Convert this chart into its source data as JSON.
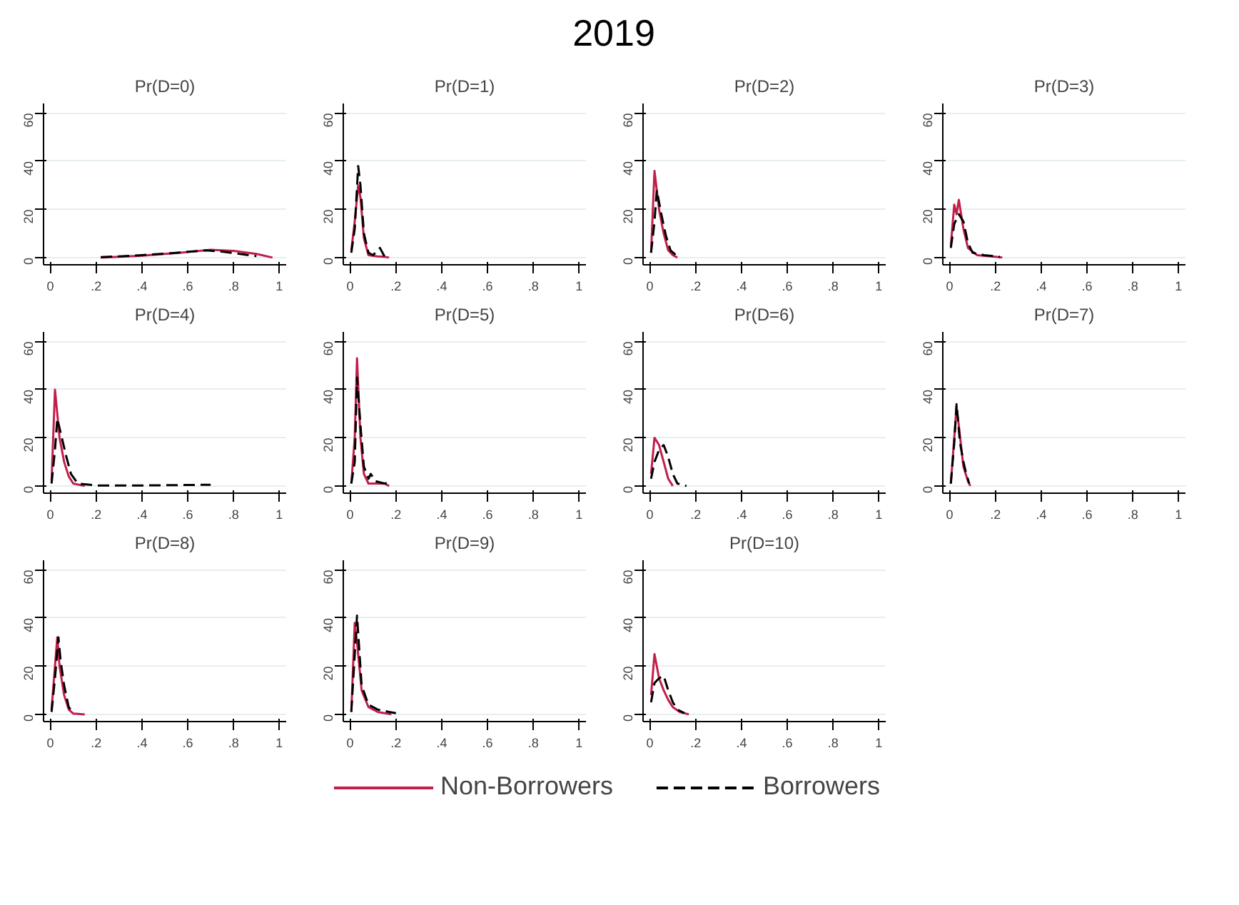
{
  "chart_data": [
    {
      "type": "line",
      "title": "Pr(D=0)",
      "annotations": [
        "2019"
      ],
      "legend": "bottom",
      "xlim": [
        -0.03,
        1.03
      ],
      "ylim": [
        -3,
        64
      ],
      "xticks": [
        {
          "value": 0,
          "label": "0"
        },
        {
          "value": 0.2,
          "label": ".2"
        },
        {
          "value": 0.4,
          "label": ".4"
        },
        {
          "value": 0.6,
          "label": ".6"
        },
        {
          "value": 0.8,
          "label": ".8"
        },
        {
          "value": 1,
          "label": "1"
        }
      ],
      "yticks": [
        0,
        20,
        40,
        60
      ],
      "grid": "y",
      "series": [
        {
          "name": "Non-Borrowers",
          "color": "#c21e4a",
          "line_style": "solid",
          "x": [
            0.22,
            0.3,
            0.4,
            0.5,
            0.6,
            0.7,
            0.8,
            0.9,
            0.97
          ],
          "values": [
            0,
            0.3,
            0.8,
            1.5,
            2.3,
            3.2,
            2.8,
            1.5,
            0
          ]
        },
        {
          "name": "Borrowers",
          "color": "#000000",
          "line_style": "dashed",
          "x": [
            0.22,
            0.3,
            0.4,
            0.5,
            0.6,
            0.68,
            0.75,
            0.85,
            0.9
          ],
          "values": [
            0.2,
            0.5,
            1,
            1.6,
            2.4,
            3,
            2.5,
            1.2,
            0.6
          ]
        }
      ]
    },
    {
      "type": "line",
      "title": "Pr(D=1)",
      "xlim": [
        -0.03,
        1.03
      ],
      "ylim": [
        -3,
        64
      ],
      "xticks": [
        {
          "value": 0,
          "label": "0"
        },
        {
          "value": 0.2,
          "label": ".2"
        },
        {
          "value": 0.4,
          "label": ".4"
        },
        {
          "value": 0.6,
          "label": ".6"
        },
        {
          "value": 0.8,
          "label": ".8"
        },
        {
          "value": 1,
          "label": "1"
        }
      ],
      "yticks": [
        0,
        20,
        40,
        60
      ],
      "grid": "y",
      "series": [
        {
          "color": "#c21e4a",
          "line_style": "solid",
          "x": [
            0.005,
            0.02,
            0.035,
            0.045,
            0.06,
            0.08,
            0.12,
            0.15,
            0.17
          ],
          "values": [
            3,
            15,
            30,
            25,
            8,
            1,
            0.5,
            0.3,
            0
          ]
        },
        {
          "color": "#000000",
          "line_style": "dashed",
          "x": [
            0.005,
            0.02,
            0.035,
            0.045,
            0.06,
            0.08,
            0.1,
            0.13,
            0.15
          ],
          "values": [
            2,
            12,
            38,
            30,
            10,
            2,
            1,
            4,
            0.5
          ]
        }
      ]
    },
    {
      "type": "line",
      "title": "Pr(D=2)",
      "xlim": [
        -0.03,
        1.03
      ],
      "ylim": [
        -3,
        64
      ],
      "xticks": [
        {
          "value": 0,
          "label": "0"
        },
        {
          "value": 0.2,
          "label": ".2"
        },
        {
          "value": 0.4,
          "label": ".4"
        },
        {
          "value": 0.6,
          "label": ".6"
        },
        {
          "value": 0.8,
          "label": ".8"
        },
        {
          "value": 1,
          "label": "1"
        }
      ],
      "yticks": [
        0,
        20,
        40,
        60
      ],
      "grid": "y",
      "series": [
        {
          "color": "#c21e4a",
          "line_style": "solid",
          "x": [
            0.005,
            0.02,
            0.04,
            0.06,
            0.08,
            0.1,
            0.12
          ],
          "values": [
            2,
            36,
            20,
            10,
            3,
            1,
            0
          ]
        },
        {
          "color": "#000000",
          "line_style": "dashed",
          "x": [
            0.005,
            0.02,
            0.03,
            0.05,
            0.07,
            0.09,
            0.12
          ],
          "values": [
            2,
            15,
            28,
            18,
            9,
            3,
            0.5
          ]
        }
      ]
    },
    {
      "type": "line",
      "title": "Pr(D=3)",
      "xlim": [
        -0.03,
        1.03
      ],
      "ylim": [
        -3,
        64
      ],
      "xticks": [
        {
          "value": 0,
          "label": "0"
        },
        {
          "value": 0.2,
          "label": ".2"
        },
        {
          "value": 0.4,
          "label": ".4"
        },
        {
          "value": 0.6,
          "label": ".6"
        },
        {
          "value": 0.8,
          "label": ".8"
        },
        {
          "value": 1,
          "label": "1"
        }
      ],
      "yticks": [
        0,
        20,
        40,
        60
      ],
      "grid": "y",
      "series": [
        {
          "color": "#c21e4a",
          "line_style": "solid",
          "x": [
            0.005,
            0.02,
            0.03,
            0.04,
            0.06,
            0.08,
            0.12,
            0.2,
            0.23
          ],
          "values": [
            5,
            22,
            18,
            24,
            12,
            4,
            1,
            0.3,
            0
          ]
        },
        {
          "color": "#000000",
          "line_style": "dashed",
          "x": [
            0.005,
            0.02,
            0.04,
            0.06,
            0.08,
            0.1,
            0.15,
            0.22
          ],
          "values": [
            4,
            14,
            18,
            15,
            6,
            2,
            1,
            0.3
          ]
        }
      ]
    },
    {
      "type": "line",
      "title": "Pr(D=4)",
      "xlim": [
        -0.03,
        1.03
      ],
      "ylim": [
        -3,
        64
      ],
      "xticks": [
        {
          "value": 0,
          "label": "0"
        },
        {
          "value": 0.2,
          "label": ".2"
        },
        {
          "value": 0.4,
          "label": ".4"
        },
        {
          "value": 0.6,
          "label": ".6"
        },
        {
          "value": 0.8,
          "label": ".8"
        },
        {
          "value": 1,
          "label": "1"
        }
      ],
      "yticks": [
        0,
        20,
        40,
        60
      ],
      "grid": "y",
      "series": [
        {
          "color": "#c21e4a",
          "line_style": "solid",
          "x": [
            0.005,
            0.02,
            0.04,
            0.06,
            0.08,
            0.1,
            0.15
          ],
          "values": [
            2,
            40,
            20,
            10,
            4,
            1,
            0
          ]
        },
        {
          "color": "#000000",
          "line_style": "dashed",
          "x": [
            0.005,
            0.02,
            0.03,
            0.05,
            0.07,
            0.09,
            0.12,
            0.2,
            0.4,
            0.7
          ],
          "values": [
            1,
            15,
            28,
            20,
            12,
            5,
            1,
            0.2,
            0.2,
            0.5
          ]
        }
      ]
    },
    {
      "type": "line",
      "title": "Pr(D=5)",
      "xlim": [
        -0.03,
        1.03
      ],
      "ylim": [
        -3,
        64
      ],
      "xticks": [
        {
          "value": 0,
          "label": "0"
        },
        {
          "value": 0.2,
          "label": ".2"
        },
        {
          "value": 0.4,
          "label": ".4"
        },
        {
          "value": 0.6,
          "label": ".6"
        },
        {
          "value": 0.8,
          "label": ".8"
        },
        {
          "value": 1,
          "label": "1"
        }
      ],
      "yticks": [
        0,
        20,
        40,
        60
      ],
      "grid": "y",
      "series": [
        {
          "color": "#c21e4a",
          "line_style": "solid",
          "x": [
            0.005,
            0.02,
            0.03,
            0.045,
            0.06,
            0.08,
            0.15,
            0.17
          ],
          "values": [
            1,
            20,
            53,
            20,
            5,
            1,
            1,
            0
          ]
        },
        {
          "color": "#000000",
          "line_style": "dashed",
          "x": [
            0.005,
            0.02,
            0.03,
            0.045,
            0.06,
            0.08,
            0.09,
            0.11,
            0.15,
            0.17
          ],
          "values": [
            1,
            10,
            45,
            25,
            8,
            3,
            5,
            2,
            1,
            1.5
          ]
        }
      ]
    },
    {
      "type": "line",
      "title": "Pr(D=6)",
      "xlim": [
        -0.03,
        1.03
      ],
      "ylim": [
        -3,
        64
      ],
      "xticks": [
        {
          "value": 0,
          "label": "0"
        },
        {
          "value": 0.2,
          "label": ".2"
        },
        {
          "value": 0.4,
          "label": ".4"
        },
        {
          "value": 0.6,
          "label": ".6"
        },
        {
          "value": 0.8,
          "label": ".8"
        },
        {
          "value": 1,
          "label": "1"
        }
      ],
      "yticks": [
        0,
        20,
        40,
        60
      ],
      "grid": "y",
      "series": [
        {
          "color": "#c21e4a",
          "line_style": "solid",
          "x": [
            0.005,
            0.02,
            0.04,
            0.06,
            0.08,
            0.1
          ],
          "values": [
            5,
            20,
            17,
            10,
            3,
            0
          ]
        },
        {
          "color": "#000000",
          "line_style": "dashed",
          "x": [
            0.005,
            0.02,
            0.04,
            0.06,
            0.08,
            0.1,
            0.12,
            0.16
          ],
          "values": [
            3,
            10,
            15,
            17,
            12,
            5,
            1,
            0
          ]
        }
      ]
    },
    {
      "type": "line",
      "title": "Pr(D=7)",
      "xlim": [
        -0.03,
        1.03
      ],
      "ylim": [
        -3,
        64
      ],
      "xticks": [
        {
          "value": 0,
          "label": "0"
        },
        {
          "value": 0.2,
          "label": ".2"
        },
        {
          "value": 0.4,
          "label": ".4"
        },
        {
          "value": 0.6,
          "label": ".6"
        },
        {
          "value": 0.8,
          "label": ".8"
        },
        {
          "value": 1,
          "label": "1"
        }
      ],
      "yticks": [
        0,
        20,
        40,
        60
      ],
      "grid": "y",
      "series": [
        {
          "color": "#c21e4a",
          "line_style": "solid",
          "x": [
            0.005,
            0.02,
            0.03,
            0.04,
            0.06,
            0.08,
            0.09
          ],
          "values": [
            1,
            20,
            33,
            25,
            8,
            2,
            0
          ]
        },
        {
          "color": "#000000",
          "line_style": "dashed",
          "x": [
            0.005,
            0.02,
            0.03,
            0.045,
            0.06,
            0.07,
            0.085
          ],
          "values": [
            1,
            18,
            34,
            18,
            10,
            6,
            1
          ]
        }
      ]
    },
    {
      "type": "line",
      "title": "Pr(D=8)",
      "xlim": [
        -0.03,
        1.03
      ],
      "ylim": [
        -3,
        64
      ],
      "xticks": [
        {
          "value": 0,
          "label": "0"
        },
        {
          "value": 0.2,
          "label": ".2"
        },
        {
          "value": 0.4,
          "label": ".4"
        },
        {
          "value": 0.6,
          "label": ".6"
        },
        {
          "value": 0.8,
          "label": ".8"
        },
        {
          "value": 1,
          "label": "1"
        }
      ],
      "yticks": [
        0,
        20,
        40,
        60
      ],
      "grid": "y",
      "series": [
        {
          "color": "#c21e4a",
          "line_style": "solid",
          "x": [
            0.005,
            0.02,
            0.03,
            0.04,
            0.06,
            0.08,
            0.1,
            0.15
          ],
          "values": [
            2,
            20,
            32,
            20,
            8,
            2,
            0.3,
            0
          ]
        },
        {
          "color": "#000000",
          "line_style": "dashed",
          "x": [
            0.005,
            0.02,
            0.035,
            0.045,
            0.06,
            0.08,
            0.1
          ],
          "values": [
            1,
            15,
            32,
            22,
            12,
            3,
            0.5
          ]
        }
      ]
    },
    {
      "type": "line",
      "title": "Pr(D=9)",
      "xlim": [
        -0.03,
        1.03
      ],
      "ylim": [
        -3,
        64
      ],
      "xticks": [
        {
          "value": 0,
          "label": "0"
        },
        {
          "value": 0.2,
          "label": ".2"
        },
        {
          "value": 0.4,
          "label": ".4"
        },
        {
          "value": 0.6,
          "label": ".6"
        },
        {
          "value": 0.8,
          "label": ".8"
        },
        {
          "value": 1,
          "label": "1"
        }
      ],
      "yticks": [
        0,
        20,
        40,
        60
      ],
      "grid": "y",
      "series": [
        {
          "color": "#c21e4a",
          "line_style": "solid",
          "x": [
            0.005,
            0.02,
            0.03,
            0.05,
            0.08,
            0.12,
            0.18
          ],
          "values": [
            1,
            38,
            30,
            10,
            3,
            1,
            0
          ]
        },
        {
          "color": "#000000",
          "line_style": "dashed",
          "x": [
            0.005,
            0.02,
            0.03,
            0.05,
            0.08,
            0.12,
            0.17,
            0.2
          ],
          "values": [
            1,
            25,
            41,
            12,
            4,
            2,
            1,
            0.5
          ]
        }
      ]
    },
    {
      "type": "line",
      "title": "Pr(D=10)",
      "xlim": [
        -0.03,
        1.03
      ],
      "ylim": [
        -3,
        64
      ],
      "xticks": [
        {
          "value": 0,
          "label": "0"
        },
        {
          "value": 0.2,
          "label": ".2"
        },
        {
          "value": 0.4,
          "label": ".4"
        },
        {
          "value": 0.6,
          "label": ".6"
        },
        {
          "value": 0.8,
          "label": ".8"
        },
        {
          "value": 1,
          "label": "1"
        }
      ],
      "yticks": [
        0,
        20,
        40,
        60
      ],
      "grid": "y",
      "series": [
        {
          "color": "#c21e4a",
          "line_style": "solid",
          "x": [
            0.005,
            0.02,
            0.04,
            0.06,
            0.08,
            0.1,
            0.13,
            0.17
          ],
          "values": [
            8,
            25,
            15,
            10,
            6,
            3,
            1,
            0
          ]
        },
        {
          "color": "#000000",
          "line_style": "dashed",
          "x": [
            0.005,
            0.02,
            0.04,
            0.06,
            0.08,
            0.1,
            0.12,
            0.15
          ],
          "values": [
            5,
            13,
            15,
            16,
            10,
            5,
            2,
            0.5
          ]
        }
      ]
    }
  ]
}
